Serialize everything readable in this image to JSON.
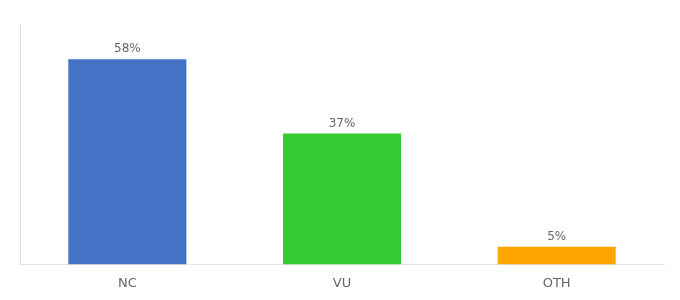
{
  "chart_data": {
    "type": "bar",
    "categories": [
      "NC",
      "VU",
      "OTH"
    ],
    "values": [
      58,
      37,
      5
    ],
    "value_labels": [
      "58%",
      "37%",
      "5%"
    ],
    "colors": [
      "#4472C4",
      "#33CC33",
      "#FFA500"
    ],
    "ylim": [
      0,
      68
    ],
    "grid": false,
    "data_labels": true,
    "tick_labels": "x"
  }
}
